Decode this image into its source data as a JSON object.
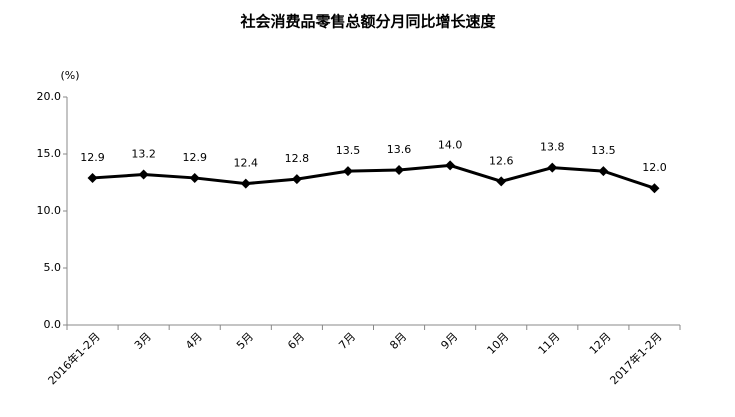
{
  "chart_data": {
    "type": "line",
    "title": "社会消费品零售总额分月同比增长速度",
    "y_label": "(%)",
    "categories": [
      "2016年1-2月",
      "3月",
      "4月",
      "5月",
      "6月",
      "7月",
      "8月",
      "9月",
      "10月",
      "11月",
      "12月",
      "2017年1-2月"
    ],
    "values": [
      12.9,
      13.2,
      12.9,
      12.4,
      12.8,
      13.5,
      13.6,
      14.0,
      12.6,
      13.8,
      13.5,
      12.0
    ],
    "value_labels": [
      "12.9",
      "13.2",
      "12.9",
      "12.4",
      "12.8",
      "13.5",
      "13.6",
      "14.0",
      "12.6",
      "13.8",
      "13.5",
      "12.0"
    ],
    "color": "#000000",
    "ylim": [
      0,
      20
    ],
    "yticks": [
      {
        "value": 0,
        "label": "0.0"
      },
      {
        "value": 5,
        "label": "5.0"
      },
      {
        "value": 10,
        "label": "10.0"
      },
      {
        "value": 15,
        "label": "15.0"
      },
      {
        "value": 20,
        "label": "20.0"
      }
    ],
    "grid": false
  }
}
